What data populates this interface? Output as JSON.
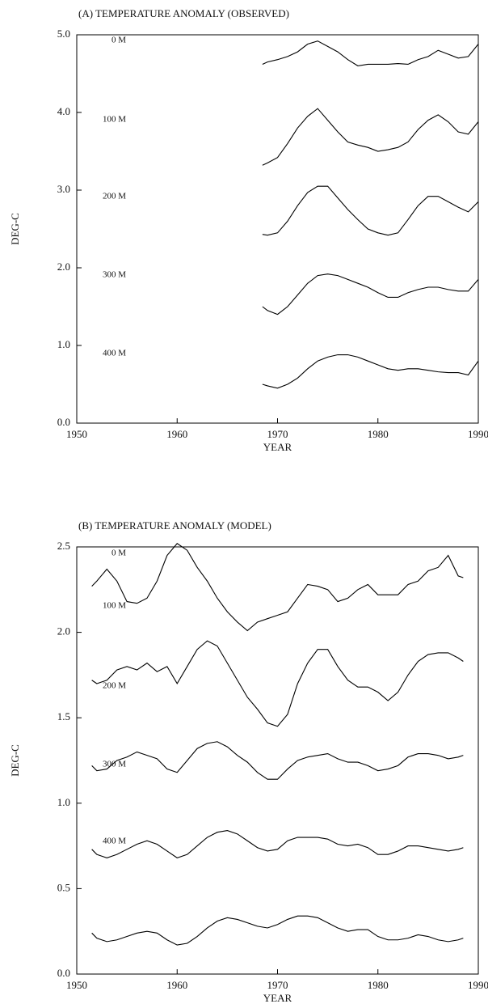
{
  "chart_data": [
    {
      "type": "line",
      "title": "(A) TEMPERATURE ANOMALY (OBSERVED)",
      "xlabel": "YEAR",
      "ylabel": "DEG-C",
      "x": [
        1968.5,
        1969,
        1970,
        1971,
        1972,
        1973,
        1974,
        1975,
        1976,
        1977,
        1978,
        1979,
        1980,
        1981,
        1982,
        1983,
        1984,
        1985,
        1986,
        1987,
        1988,
        1989,
        1990
      ],
      "series": [
        {
          "name": "0 M",
          "color": "#000000",
          "values": [
            4.62,
            4.65,
            4.68,
            4.72,
            4.78,
            4.88,
            4.92,
            4.85,
            4.78,
            4.68,
            4.6,
            4.62,
            4.62,
            4.62,
            4.63,
            4.62,
            4.68,
            4.72,
            4.8,
            4.75,
            4.7,
            4.72,
            4.88
          ]
        },
        {
          "name": "100 M",
          "color": "#000000",
          "values": [
            3.32,
            3.35,
            3.42,
            3.6,
            3.8,
            3.95,
            4.05,
            3.9,
            3.75,
            3.62,
            3.58,
            3.55,
            3.5,
            3.52,
            3.55,
            3.62,
            3.78,
            3.9,
            3.97,
            3.88,
            3.75,
            3.72,
            3.88
          ]
        },
        {
          "name": "200 M",
          "color": "#000000",
          "values": [
            2.43,
            2.42,
            2.45,
            2.6,
            2.8,
            2.97,
            3.05,
            3.05,
            2.9,
            2.75,
            2.62,
            2.5,
            2.45,
            2.42,
            2.45,
            2.62,
            2.8,
            2.92,
            2.92,
            2.85,
            2.78,
            2.72,
            2.85
          ]
        },
        {
          "name": "300 M",
          "color": "#000000",
          "values": [
            1.5,
            1.45,
            1.4,
            1.5,
            1.65,
            1.8,
            1.9,
            1.92,
            1.9,
            1.85,
            1.8,
            1.75,
            1.68,
            1.62,
            1.62,
            1.68,
            1.72,
            1.75,
            1.75,
            1.72,
            1.7,
            1.7,
            1.85
          ]
        },
        {
          "name": "400 M",
          "color": "#000000",
          "values": [
            0.5,
            0.48,
            0.45,
            0.5,
            0.58,
            0.7,
            0.8,
            0.85,
            0.88,
            0.88,
            0.85,
            0.8,
            0.75,
            0.7,
            0.68,
            0.7,
            0.7,
            0.68,
            0.66,
            0.65,
            0.65,
            0.62,
            0.8
          ]
        }
      ],
      "xlim": [
        1950,
        1990
      ],
      "xticks": [
        1950,
        1960,
        1970,
        1980,
        1990
      ],
      "ylim": [
        0,
        5
      ],
      "yticks": [
        {
          "value": 0,
          "label": "0.0"
        },
        {
          "value": 1,
          "label": "1.0"
        },
        {
          "value": 2,
          "label": "2.0"
        },
        {
          "value": 3,
          "label": "3.0"
        },
        {
          "value": 4,
          "label": "4.0"
        },
        {
          "value": 5,
          "label": "5.0"
        }
      ],
      "grid": false
    },
    {
      "type": "line",
      "title": "(B) TEMPERATURE ANOMALY (MODEL)",
      "xlabel": "YEAR",
      "ylabel": "DEG-C",
      "x": [
        1951.5,
        1952,
        1953,
        1954,
        1955,
        1956,
        1957,
        1958,
        1959,
        1960,
        1961,
        1962,
        1963,
        1964,
        1965,
        1966,
        1967,
        1968,
        1969,
        1970,
        1971,
        1972,
        1973,
        1974,
        1975,
        1976,
        1977,
        1978,
        1979,
        1980,
        1981,
        1982,
        1983,
        1984,
        1985,
        1986,
        1987,
        1988,
        1988.5
      ],
      "series": [
        {
          "name": "0 M",
          "color": "#000000",
          "values": [
            2.27,
            2.3,
            2.37,
            2.3,
            2.18,
            2.17,
            2.2,
            2.3,
            2.45,
            2.52,
            2.48,
            2.38,
            2.3,
            2.2,
            2.12,
            2.06,
            2.01,
            2.06,
            2.08,
            2.1,
            2.12,
            2.2,
            2.28,
            2.27,
            2.25,
            2.18,
            2.2,
            2.25,
            2.28,
            2.22,
            2.22,
            2.22,
            2.28,
            2.3,
            2.36,
            2.38,
            2.45,
            2.33,
            2.32
          ]
        },
        {
          "name": "100 M",
          "color": "#000000",
          "values": [
            1.72,
            1.7,
            1.72,
            1.78,
            1.8,
            1.78,
            1.82,
            1.77,
            1.8,
            1.7,
            1.8,
            1.9,
            1.95,
            1.92,
            1.82,
            1.72,
            1.62,
            1.55,
            1.47,
            1.45,
            1.52,
            1.7,
            1.82,
            1.9,
            1.9,
            1.8,
            1.72,
            1.68,
            1.68,
            1.65,
            1.6,
            1.65,
            1.75,
            1.83,
            1.87,
            1.88,
            1.88,
            1.85,
            1.83
          ]
        },
        {
          "name": "200 M",
          "color": "#000000",
          "values": [
            1.22,
            1.19,
            1.2,
            1.25,
            1.27,
            1.3,
            1.28,
            1.26,
            1.2,
            1.18,
            1.25,
            1.32,
            1.35,
            1.36,
            1.33,
            1.28,
            1.24,
            1.18,
            1.14,
            1.14,
            1.2,
            1.25,
            1.27,
            1.28,
            1.29,
            1.26,
            1.24,
            1.24,
            1.22,
            1.19,
            1.2,
            1.22,
            1.27,
            1.29,
            1.29,
            1.28,
            1.26,
            1.27,
            1.28
          ]
        },
        {
          "name": "300 M",
          "color": "#000000",
          "values": [
            0.73,
            0.7,
            0.68,
            0.7,
            0.73,
            0.76,
            0.78,
            0.76,
            0.72,
            0.68,
            0.7,
            0.75,
            0.8,
            0.83,
            0.84,
            0.82,
            0.78,
            0.74,
            0.72,
            0.73,
            0.78,
            0.8,
            0.8,
            0.8,
            0.79,
            0.76,
            0.75,
            0.76,
            0.74,
            0.7,
            0.7,
            0.72,
            0.75,
            0.75,
            0.74,
            0.73,
            0.72,
            0.73,
            0.74
          ]
        },
        {
          "name": "400 M",
          "color": "#000000",
          "values": [
            0.24,
            0.21,
            0.19,
            0.2,
            0.22,
            0.24,
            0.25,
            0.24,
            0.2,
            0.17,
            0.18,
            0.22,
            0.27,
            0.31,
            0.33,
            0.32,
            0.3,
            0.28,
            0.27,
            0.29,
            0.32,
            0.34,
            0.34,
            0.33,
            0.3,
            0.27,
            0.25,
            0.26,
            0.26,
            0.22,
            0.2,
            0.2,
            0.21,
            0.23,
            0.22,
            0.2,
            0.19,
            0.2,
            0.21
          ]
        }
      ],
      "xlim": [
        1950,
        1990
      ],
      "xticks": [
        1950,
        1960,
        1970,
        1980,
        1990
      ],
      "ylim": [
        0,
        2.5
      ],
      "yticks": [
        {
          "value": 0,
          "label": "0.0"
        },
        {
          "value": 0.5,
          "label": "0.5"
        },
        {
          "value": 1,
          "label": "1.0"
        },
        {
          "value": 1.5,
          "label": "1.5"
        },
        {
          "value": 2,
          "label": "2.0"
        },
        {
          "value": 2.5,
          "label": "2.5"
        }
      ],
      "grid": false
    }
  ]
}
